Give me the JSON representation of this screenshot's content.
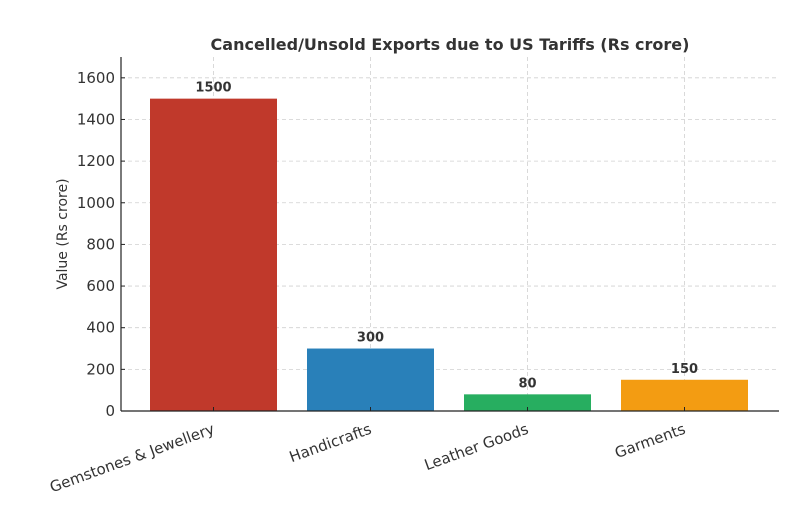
{
  "chart_data": {
    "type": "bar",
    "title": "Cancelled/Unsold Exports due to US Tariffs (Rs crore)",
    "xlabel": "",
    "ylabel": "Value (Rs crore)",
    "categories": [
      "Gemstones & Jewellery",
      "Handicrafts",
      "Leather Goods",
      "Garments"
    ],
    "values": [
      1500,
      300,
      80,
      150
    ],
    "colors": [
      "#c0392b",
      "#2980b9",
      "#27ae60",
      "#f39c12"
    ],
    "ylim": [
      0,
      1700
    ],
    "yticks": [
      0,
      200,
      400,
      600,
      800,
      1000,
      1200,
      1400,
      1600
    ],
    "grid": true,
    "data_labels": true
  }
}
